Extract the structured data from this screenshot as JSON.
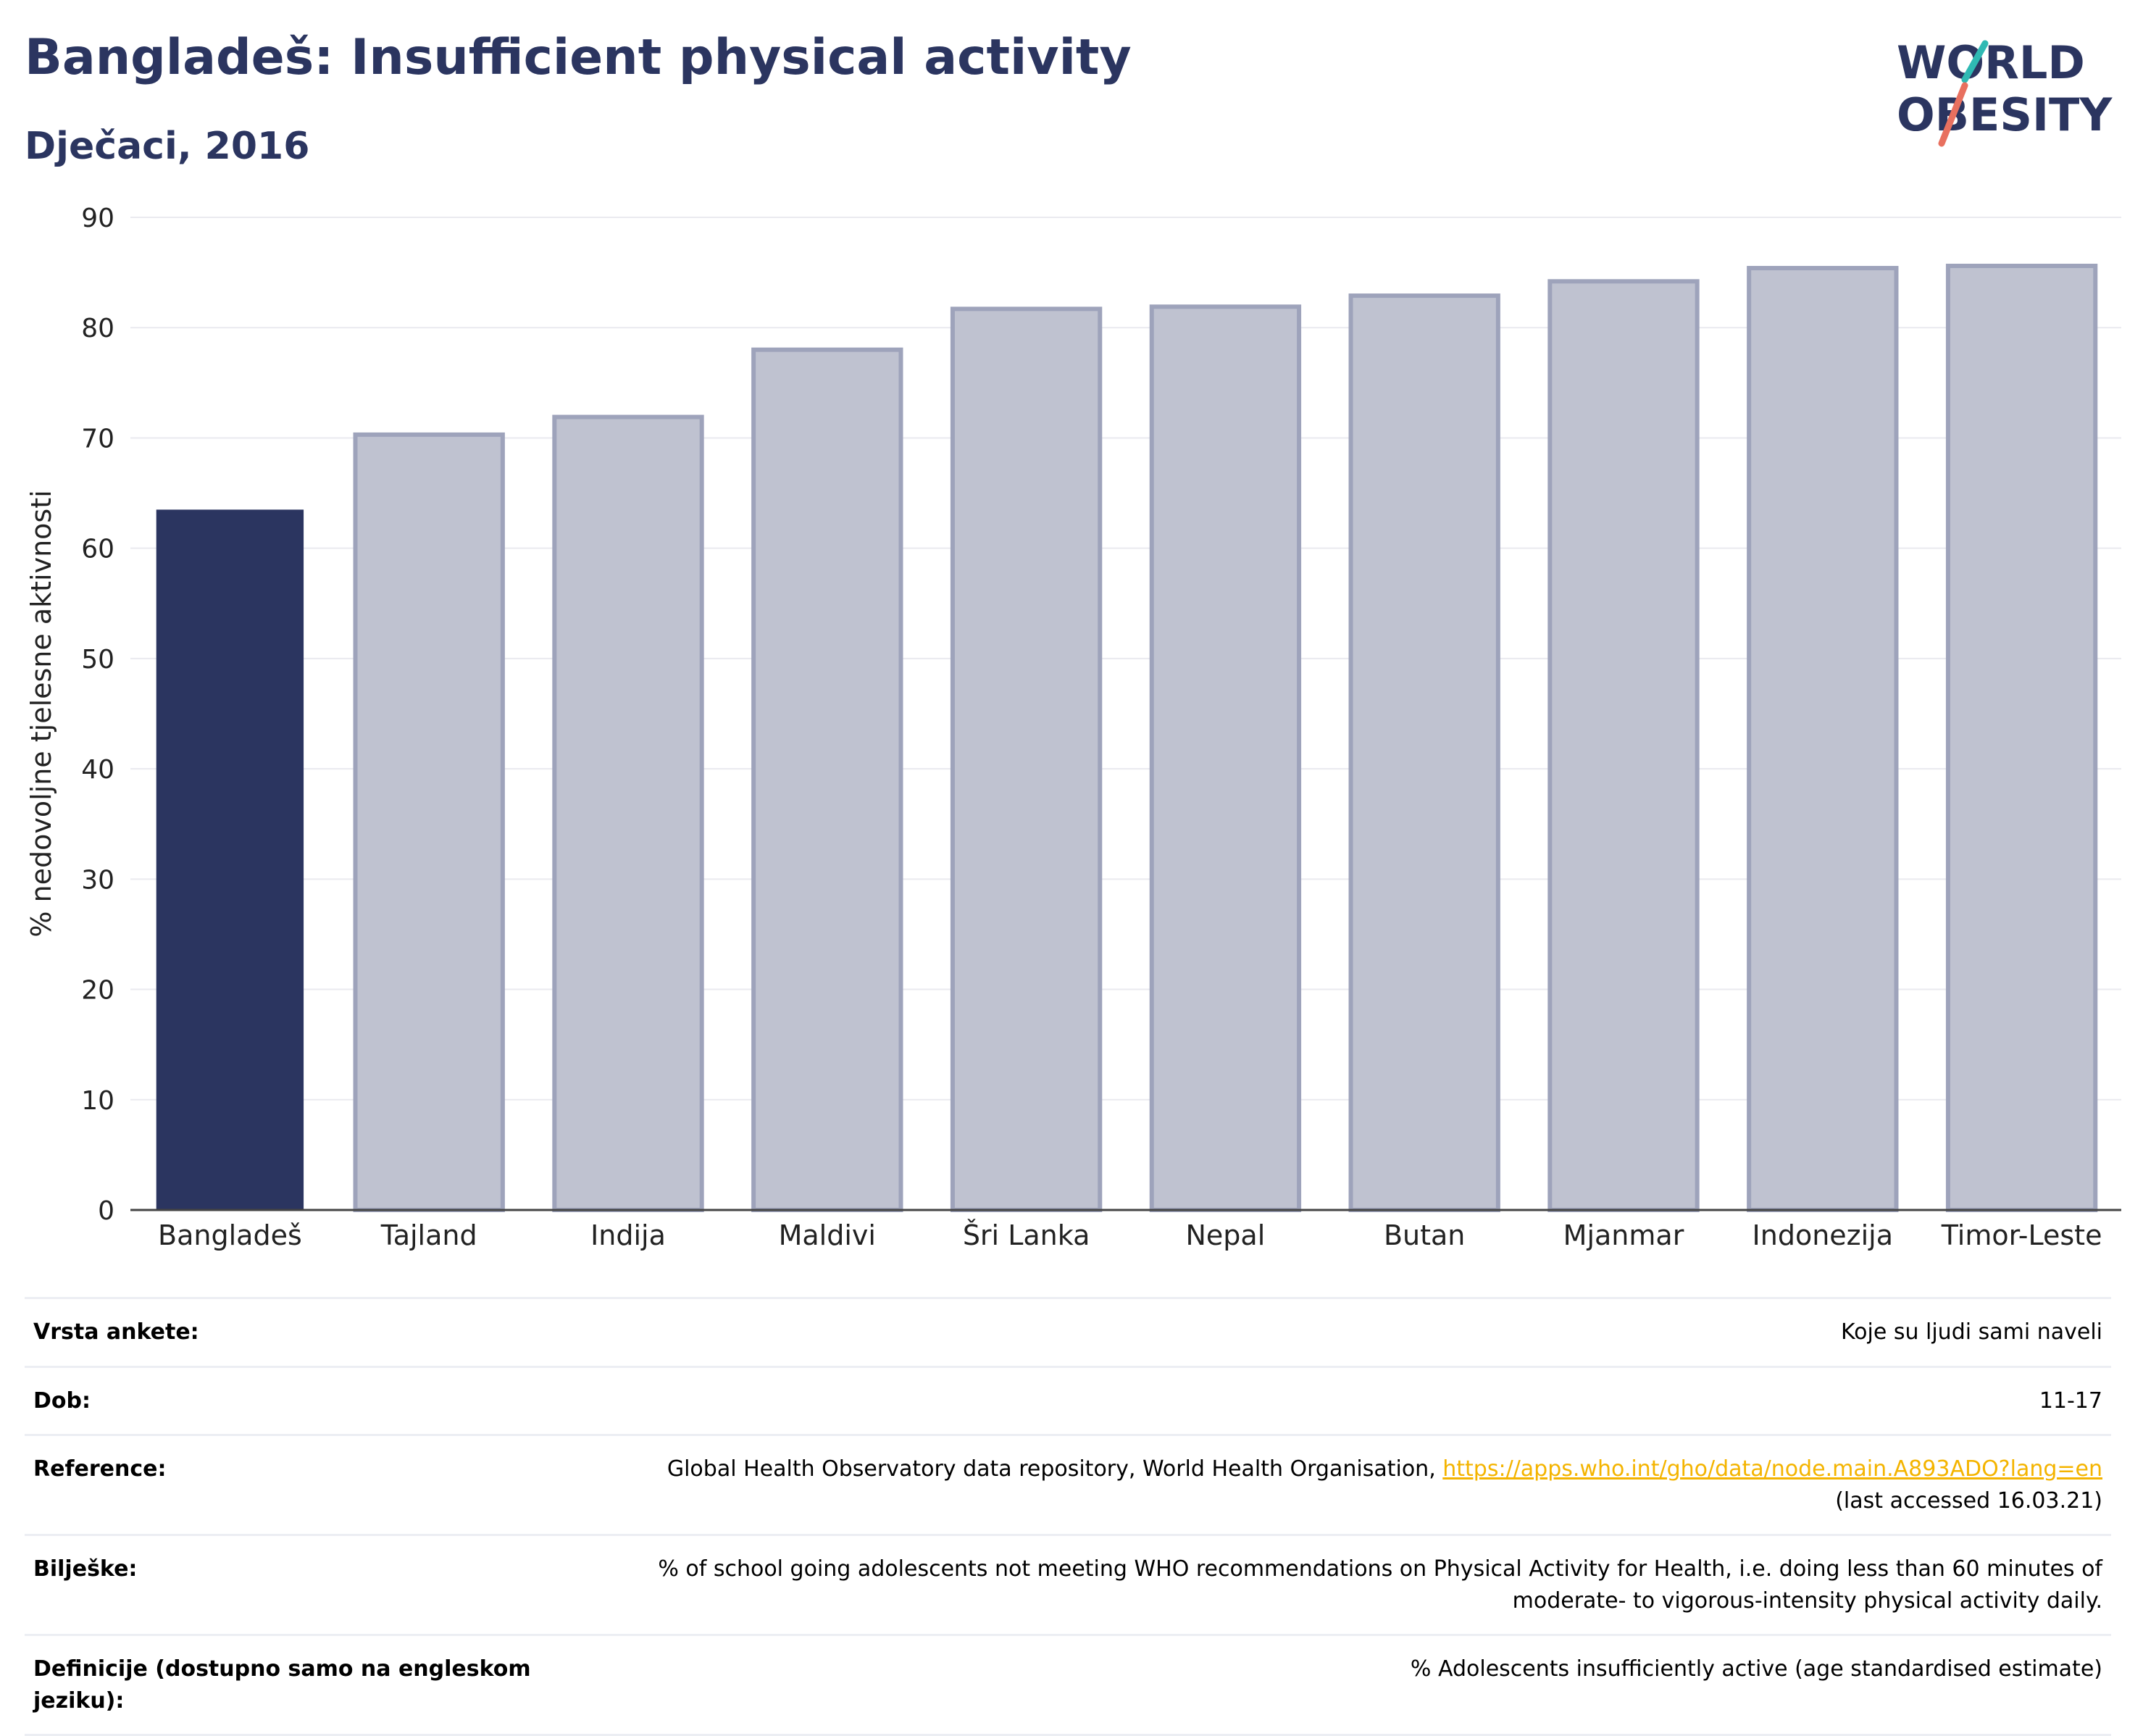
{
  "header": {
    "title": "Bangladeš: Insufficient physical activity",
    "subtitle": "Dječaci, 2016"
  },
  "logo": {
    "line1": "WORLD",
    "line2": "OBESITY"
  },
  "colors": {
    "highlight_bar": "#2b3560",
    "other_bar_fill": "#bfc2d0",
    "other_bar_stroke": "#9ea3bb",
    "grid": "#eaeaef",
    "logo_slash_teal": "#2fb9b3",
    "logo_slash_coral": "#e8705f"
  },
  "chart_data": {
    "type": "bar",
    "categories": [
      "Bangladeš",
      "Tajland",
      "Indija",
      "Maldivi",
      "Šri Lanka",
      "Nepal",
      "Butan",
      "Mjanmar",
      "Indonezija",
      "Timor-Leste"
    ],
    "values": [
      63.5,
      70.3,
      71.9,
      78.0,
      81.7,
      81.9,
      82.9,
      84.2,
      85.4,
      85.6
    ],
    "highlight": "Bangladeš",
    "ylabel": "% nedovoljne tjelesne aktivnosti",
    "xlabel": "",
    "ylim": [
      0,
      90
    ],
    "yticks": [
      0,
      10,
      20,
      30,
      40,
      50,
      60,
      70,
      80,
      90
    ],
    "grid": true
  },
  "table": [
    {
      "key": "Vrsta ankete:",
      "value": "Koje su ljudi sami naveli"
    },
    {
      "key": "Dob:",
      "value": "11-17"
    },
    {
      "key": "Reference:",
      "value": "Global Health Observatory data repository, World Health Organisation, ",
      "link": "https://apps.who.int/gho/data/node.main.A893ADO?lang=en",
      "value_after": "(last accessed 16.03.21)"
    },
    {
      "key": "Bilješke:",
      "value": "% of school going adolescents not meeting WHO recommendations on Physical Activity for Health, i.e. doing less than 60 minutes of moderate- to vigorous-intensity physical activity daily."
    },
    {
      "key": "Definicije (dostupno samo na engleskom jeziku):",
      "value": "% Adolescents insufficiently active (age standardised estimate)"
    }
  ]
}
